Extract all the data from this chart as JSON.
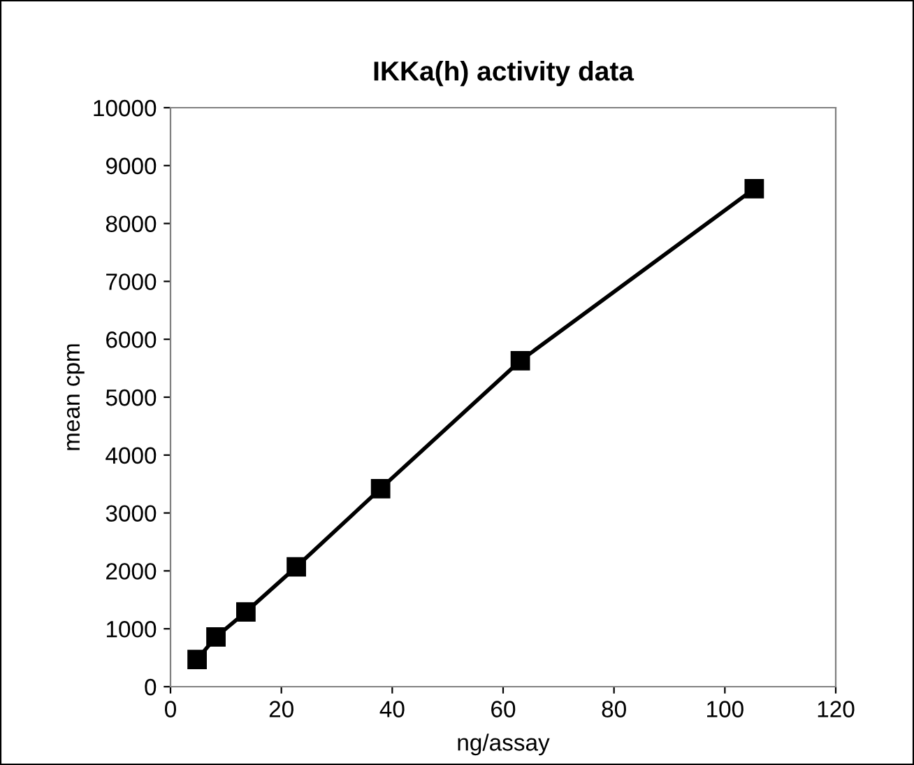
{
  "chart_data": {
    "type": "line",
    "title": "IKKa(h) activity data",
    "xlabel": "ng/assay",
    "ylabel": "mean cpm",
    "x": [
      4.8,
      8.2,
      13.6,
      22.7,
      37.9,
      63.1,
      105.3
    ],
    "series": [
      {
        "color": "#000000",
        "values": [
          470,
          860,
          1290,
          2070,
          3420,
          5630,
          8600
        ]
      }
    ],
    "xlim": [
      0,
      120
    ],
    "xticks": [
      0,
      20,
      40,
      60,
      80,
      100,
      120
    ],
    "ylim": [
      0,
      10000
    ],
    "yticks": [
      0,
      1000,
      2000,
      3000,
      4000,
      5000,
      6000,
      7000,
      8000,
      9000,
      10000
    ],
    "grid": false,
    "legend": false,
    "marker": "square",
    "line_style": "solid"
  }
}
